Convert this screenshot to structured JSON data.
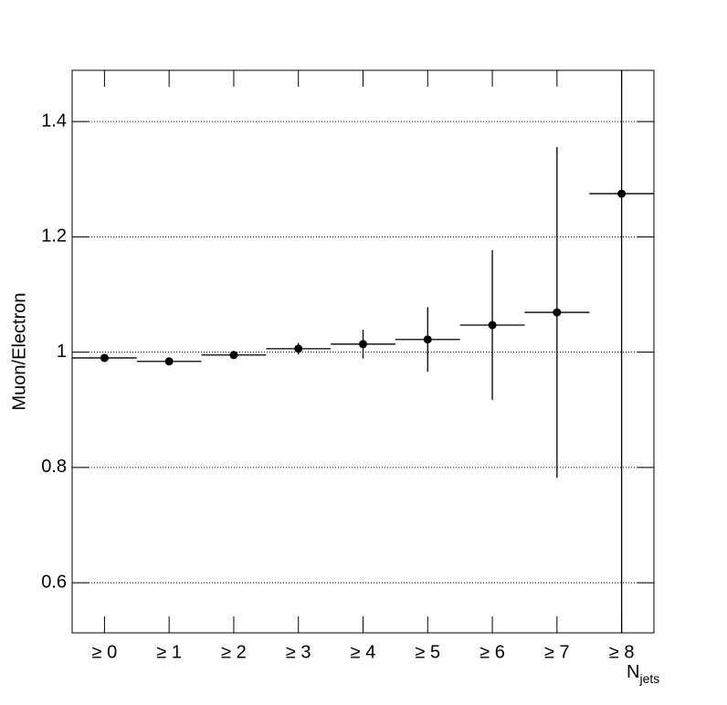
{
  "chart_data": {
    "type": "errorbar",
    "y_label": "Muon/Electron",
    "x_label": "N",
    "x_label_sub": "jets",
    "categories": [
      "≥ 0",
      "≥ 1",
      "≥ 2",
      "≥ 3",
      "≥ 4",
      "≥ 5",
      "≥ 6",
      "≥ 7",
      "≥ 8"
    ],
    "values": [
      0.99,
      0.984,
      0.995,
      1.006,
      1.014,
      1.022,
      1.047,
      1.069,
      1.275
    ],
    "errors": [
      0.003,
      0.004,
      0.006,
      0.01,
      0.025,
      0.056,
      0.13,
      0.287,
      0.8
    ],
    "color": "#000000",
    "ylim": [
      0.513,
      1.489
    ],
    "yticks": [
      0.6,
      0.8,
      {
        "value": 1,
        "label": "1"
      },
      1.2,
      1.4
    ],
    "grid": true
  }
}
